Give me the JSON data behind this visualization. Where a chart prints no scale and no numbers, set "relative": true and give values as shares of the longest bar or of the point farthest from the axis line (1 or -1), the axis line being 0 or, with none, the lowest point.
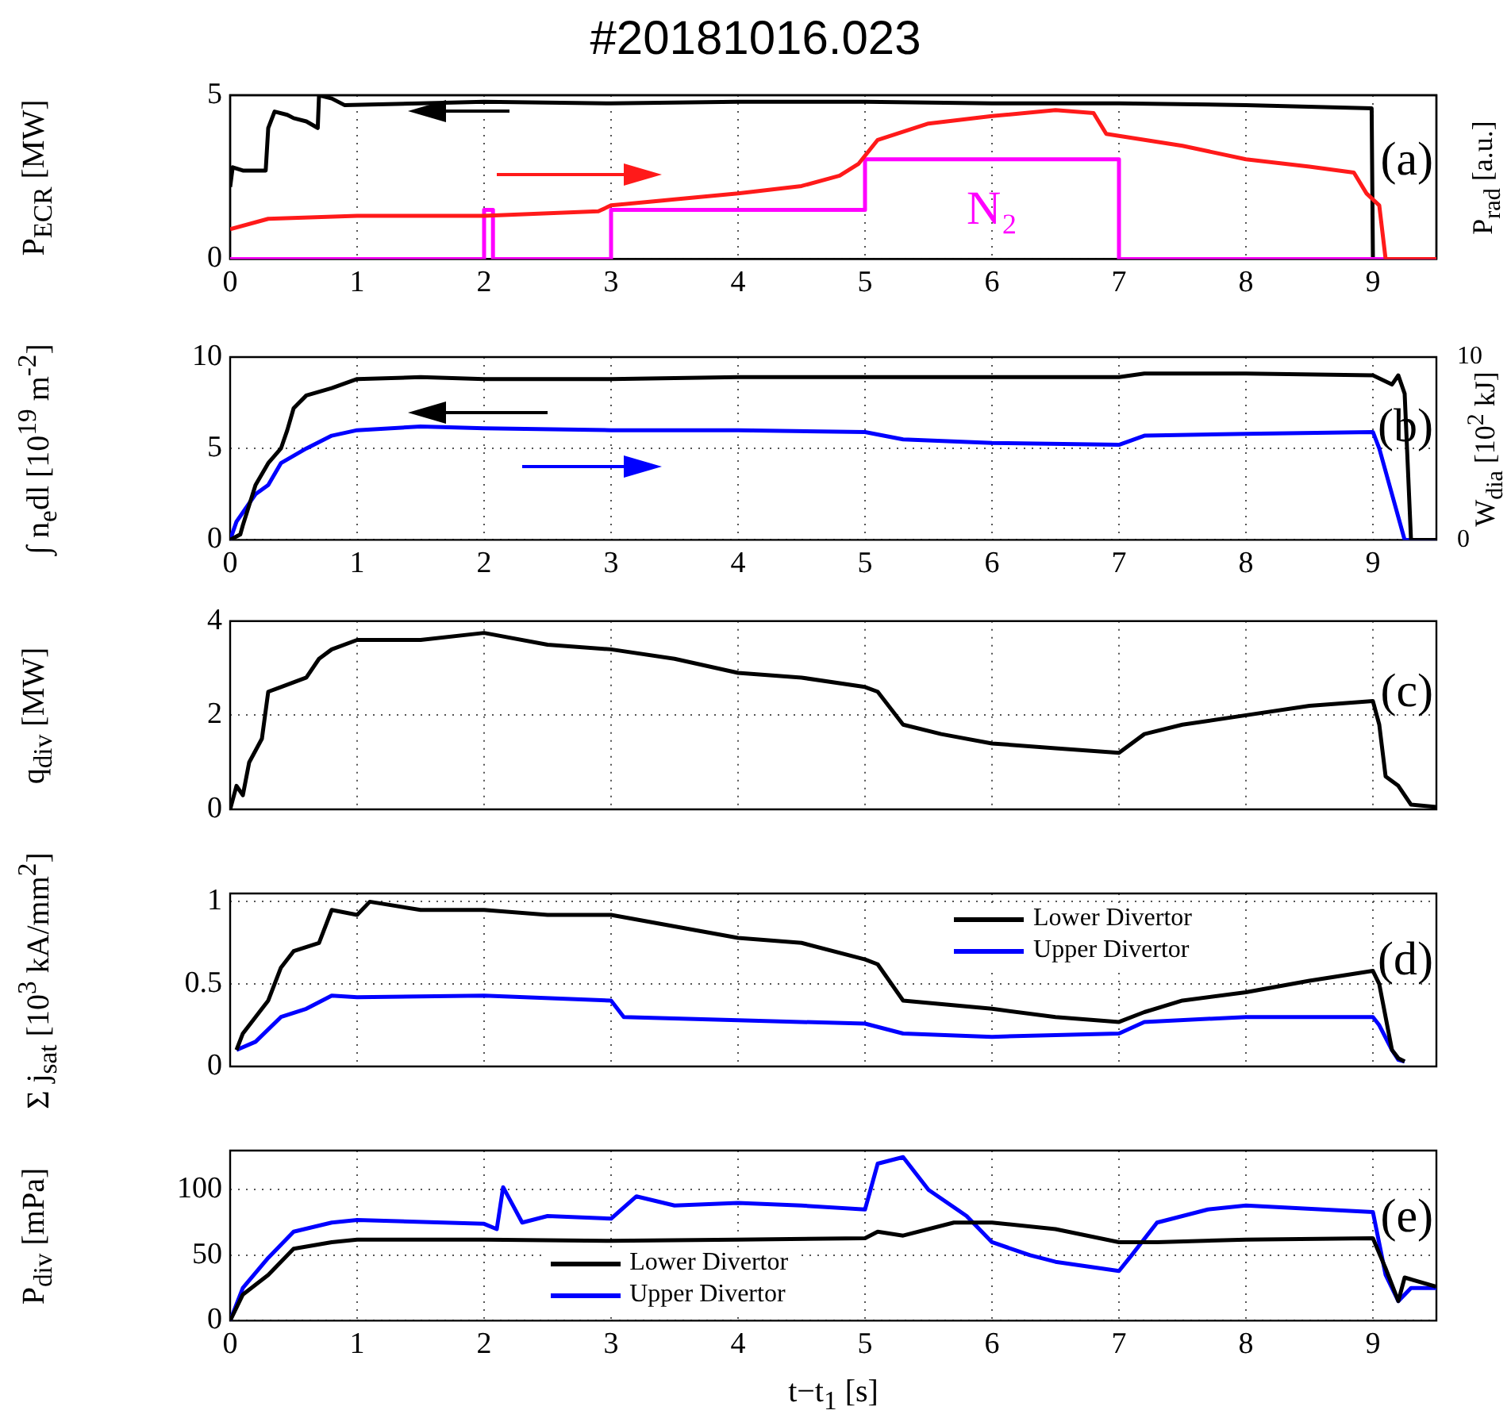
{
  "chart_data": [
    {
      "type": "line",
      "title": "#20181016.023",
      "ylabel": "P$_{ECR}$ [MW]",
      "annotations": [
        "(a)"
      ],
      "xlim": [
        0,
        9.5
      ],
      "xticks": [
        0,
        1,
        2,
        3,
        4,
        5,
        6,
        7,
        8,
        9
      ],
      "ylim": [
        0,
        5
      ],
      "yticks": [
        0,
        5
      ],
      "grid": true,
      "series": [
        {
          "color": "#000000",
          "x": [
            0,
            0.02,
            0.1,
            0.28,
            0.3,
            0.35,
            0.45,
            0.5,
            0.6,
            0.69,
            0.7,
            0.8,
            0.9,
            1.5,
            2,
            3,
            4,
            5,
            6,
            7,
            8,
            8.99,
            9.0,
            9.5
          ],
          "values": [
            2.2,
            2.8,
            2.7,
            2.7,
            4.0,
            4.5,
            4.4,
            4.3,
            4.2,
            4.0,
            5.0,
            4.9,
            4.7,
            4.75,
            4.8,
            4.75,
            4.8,
            4.8,
            4.75,
            4.75,
            4.7,
            4.6,
            0,
            0
          ]
        }
      ]
    },
    {
      "type": "line",
      "relative": true,
      "y2label": "P$_{rad}$ [a.u.]",
      "xlim": [
        0,
        9.5
      ],
      "tick_labels": false,
      "series": [
        {
          "color": "#ff1a1a",
          "axis": "y2",
          "x": [
            0,
            0.3,
            1,
            2,
            2.9,
            3,
            3.5,
            4,
            4.5,
            4.8,
            4.95,
            5.1,
            5.5,
            6,
            6.5,
            6.8,
            6.9,
            7.5,
            8,
            8.5,
            8.85,
            8.95,
            9.05,
            9.1,
            9.5
          ],
          "values": [
            0.2,
            0.27,
            0.29,
            0.29,
            0.32,
            0.36,
            0.4,
            0.44,
            0.49,
            0.56,
            0.64,
            0.8,
            0.91,
            0.96,
            1,
            0.98,
            0.84,
            0.76,
            0.67,
            0.62,
            0.58,
            0.44,
            0.36,
            0,
            0
          ]
        },
        {
          "name": "N₂",
          "color": "#ff00ff",
          "axis": "y2",
          "x": [
            0,
            2,
            2,
            2.07,
            2.07,
            3,
            3,
            5,
            5,
            7,
            7,
            9.5
          ],
          "values": [
            0,
            0,
            0.33,
            0.33,
            0,
            0,
            0.33,
            0.33,
            0.67,
            0.67,
            0,
            0
          ]
        }
      ]
    },
    {
      "type": "line",
      "ylabel": "∫ n$_{e}$dl [10$^{19}$ m$^{-2}$]",
      "y2label": "W$_{dia}$ [10$^{2}$ kJ]",
      "annotations": [
        "(b)"
      ],
      "xlim": [
        0,
        9.5
      ],
      "xticks": [
        0,
        1,
        2,
        3,
        4,
        5,
        6,
        7,
        8,
        9
      ],
      "ylim": [
        0,
        10
      ],
      "yticks": [
        0,
        5,
        10
      ],
      "y2lim": [
        0,
        10
      ],
      "y2ticks": [
        0,
        10
      ],
      "grid": true,
      "series": [
        {
          "color": "#000000",
          "x": [
            0,
            0.08,
            0.1,
            0.2,
            0.3,
            0.4,
            0.45,
            0.5,
            0.6,
            0.8,
            1.0,
            1.5,
            2,
            3,
            4,
            5,
            6,
            7,
            7.2,
            8,
            9,
            9.15,
            9.2,
            9.25,
            9.3,
            9.5
          ],
          "values": [
            0,
            0.3,
            0.8,
            3,
            4.2,
            5,
            6,
            7.2,
            7.9,
            8.3,
            8.8,
            8.9,
            8.8,
            8.8,
            8.9,
            8.9,
            8.9,
            8.9,
            9.1,
            9.1,
            9.0,
            8.5,
            9.0,
            8.0,
            0,
            0
          ]
        },
        {
          "color": "#0000ff",
          "axis": "y2",
          "x": [
            0,
            0.05,
            0.2,
            0.3,
            0.4,
            0.6,
            0.8,
            1.0,
            1.5,
            2,
            3,
            4,
            5,
            5.3,
            6,
            7,
            7.2,
            8,
            9,
            9.05,
            9.25,
            9.5
          ],
          "values": [
            0,
            1,
            2.5,
            3,
            4.2,
            5.0,
            5.7,
            6.0,
            6.2,
            6.1,
            6.0,
            6.0,
            5.9,
            5.5,
            5.3,
            5.2,
            5.7,
            5.8,
            5.9,
            5.0,
            0,
            0
          ]
        }
      ]
    },
    {
      "type": "line",
      "ylabel": "q$_{div}$ [MW]",
      "annotations": [
        "(c)"
      ],
      "xlim": [
        0,
        9.5
      ],
      "xticks": [
        0,
        1,
        2,
        3,
        4,
        5,
        6,
        7,
        8,
        9
      ],
      "ylim": [
        0,
        4
      ],
      "yticks": [
        0,
        2,
        4
      ],
      "grid": true,
      "tick_labels": "y",
      "series": [
        {
          "color": "#000000",
          "x": [
            0,
            0.05,
            0.1,
            0.15,
            0.25,
            0.3,
            0.4,
            0.5,
            0.6,
            0.7,
            0.8,
            1.0,
            1.5,
            2,
            2.5,
            3,
            3.5,
            4,
            4.5,
            5,
            5.1,
            5.3,
            5.6,
            6,
            6.5,
            7,
            7.2,
            7.5,
            8,
            8.5,
            9,
            9.05,
            9.1,
            9.2,
            9.3,
            9.5
          ],
          "values": [
            0,
            0.5,
            0.3,
            1.0,
            1.5,
            2.5,
            2.6,
            2.7,
            2.8,
            3.2,
            3.4,
            3.6,
            3.6,
            3.75,
            3.5,
            3.4,
            3.2,
            2.9,
            2.8,
            2.6,
            2.5,
            1.8,
            1.6,
            1.4,
            1.3,
            1.2,
            1.6,
            1.8,
            2.0,
            2.2,
            2.3,
            1.8,
            0.7,
            0.5,
            0.1,
            0.05
          ]
        }
      ]
    },
    {
      "type": "line",
      "ylabel": "Σ j$_{sat}$ [10$^{3}$ kA/mm$^{2}$]",
      "annotations": [
        "(d)"
      ],
      "xlim": [
        0,
        9.5
      ],
      "xticks": [
        0,
        1,
        2,
        3,
        4,
        5,
        6,
        7,
        8,
        9
      ],
      "ylim": [
        0,
        1.05
      ],
      "yticks": [
        0,
        0.5,
        1
      ],
      "grid": true,
      "tick_labels": "y",
      "legend": "top right",
      "series": [
        {
          "name": "Lower Divertor",
          "color": "#000000",
          "x": [
            0.05,
            0.1,
            0.2,
            0.3,
            0.4,
            0.5,
            0.7,
            0.8,
            1.0,
            1.1,
            1.5,
            2,
            2.5,
            3,
            3.5,
            4,
            4.5,
            5,
            5.1,
            5.3,
            6,
            6.5,
            7,
            7.2,
            7.5,
            8,
            8.5,
            9,
            9.05,
            9.1,
            9.15,
            9.2,
            9.25
          ],
          "values": [
            0.1,
            0.2,
            0.3,
            0.4,
            0.6,
            0.7,
            0.75,
            0.95,
            0.92,
            1.0,
            0.95,
            0.95,
            0.92,
            0.92,
            0.85,
            0.78,
            0.75,
            0.65,
            0.62,
            0.4,
            0.35,
            0.3,
            0.27,
            0.33,
            0.4,
            0.45,
            0.52,
            0.58,
            0.5,
            0.3,
            0.1,
            0.05,
            0.03
          ]
        },
        {
          "name": "Upper Divertor",
          "color": "#0000ff",
          "x": [
            0.05,
            0.2,
            0.4,
            0.6,
            0.8,
            1,
            2,
            3,
            3.1,
            4,
            5,
            5.3,
            6,
            7,
            7.2,
            8,
            9,
            9.05,
            9.15,
            9.2,
            9.25
          ],
          "values": [
            0.1,
            0.15,
            0.3,
            0.35,
            0.43,
            0.42,
            0.43,
            0.4,
            0.3,
            0.28,
            0.26,
            0.2,
            0.18,
            0.2,
            0.27,
            0.3,
            0.3,
            0.25,
            0.1,
            0.04,
            0.03
          ]
        }
      ]
    },
    {
      "type": "line",
      "ylabel": "P$_{div}$ [mPa]",
      "xlabel": "t−t$_{1}$ [s]",
      "annotations": [
        "(e)"
      ],
      "xlim": [
        0,
        9.5
      ],
      "xticks": [
        0,
        1,
        2,
        3,
        4,
        5,
        6,
        7,
        8,
        9
      ],
      "ylim": [
        0,
        130
      ],
      "yticks": [
        0,
        50,
        100
      ],
      "grid": true,
      "legend": "bottom",
      "series": [
        {
          "name": "Lower Divertor",
          "color": "#000000",
          "x": [
            0,
            0.1,
            0.3,
            0.5,
            0.8,
            1,
            2,
            3,
            4,
            5,
            5.1,
            5.3,
            5.7,
            6,
            6.5,
            7,
            7.3,
            8,
            9,
            9.1,
            9.2,
            9.25,
            9.5
          ],
          "values": [
            0,
            20,
            35,
            55,
            60,
            62,
            62,
            61,
            62,
            63,
            68,
            65,
            75,
            75,
            70,
            60,
            60,
            62,
            63,
            40,
            15,
            33,
            26
          ]
        },
        {
          "name": "Upper Divertor",
          "color": "#0000ff",
          "x": [
            0,
            0.1,
            0.3,
            0.5,
            0.8,
            1,
            2,
            2.1,
            2.15,
            2.3,
            2.5,
            3,
            3.2,
            3.5,
            4,
            4.5,
            5,
            5.1,
            5.3,
            5.5,
            5.8,
            6,
            6.3,
            6.5,
            7,
            7.1,
            7.3,
            7.7,
            8,
            9,
            9.1,
            9.2,
            9.3,
            9.5
          ],
          "values": [
            0,
            25,
            48,
            68,
            75,
            77,
            74,
            70,
            102,
            75,
            80,
            78,
            95,
            88,
            90,
            88,
            85,
            120,
            125,
            100,
            80,
            60,
            50,
            45,
            38,
            50,
            75,
            85,
            88,
            83,
            35,
            15,
            25,
            25
          ]
        }
      ]
    }
  ]
}
